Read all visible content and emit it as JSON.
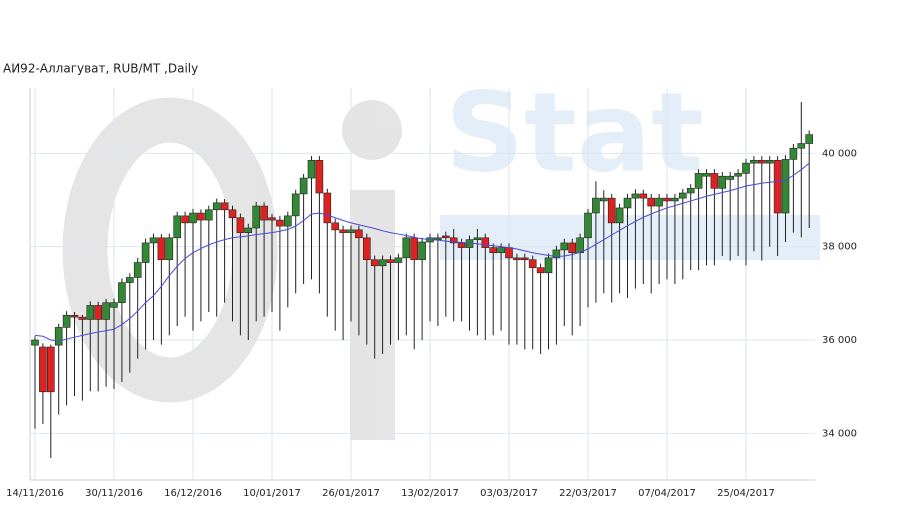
{
  "chart_data": {
    "type": "candlestick",
    "title": "АИ92-Аллагуват,  RUB/MT ,Daily",
    "watermark": "Stat",
    "categories": [
      "14/11/2016",
      null,
      null,
      null,
      null,
      null,
      null,
      null,
      null,
      null,
      "30/11/2016",
      null,
      null,
      null,
      null,
      null,
      null,
      null,
      null,
      null,
      "16/12/2016",
      null,
      null,
      null,
      null,
      null,
      null,
      null,
      null,
      null,
      "10/01/2017",
      null,
      null,
      null,
      null,
      null,
      null,
      null,
      null,
      null,
      "26/01/2017",
      null,
      null,
      null,
      null,
      null,
      null,
      null,
      null,
      null,
      "13/02/2017",
      null,
      null,
      null,
      null,
      null,
      null,
      null,
      null,
      null,
      "03/03/2017",
      null,
      null,
      null,
      null,
      null,
      null,
      null,
      null,
      null,
      "22/03/2017",
      null,
      null,
      null,
      null,
      null,
      null,
      null,
      null,
      null,
      "07/04/2017",
      null,
      null,
      null,
      null,
      null,
      null,
      null,
      null,
      null,
      "25/04/2017",
      null,
      null,
      null,
      null,
      null,
      null,
      null,
      null
    ],
    "open": [
      35890,
      35850,
      35850,
      35890,
      36270,
      36530,
      36490,
      36440,
      36740,
      36440,
      36700,
      36800,
      37230,
      37340,
      37660,
      38080,
      38190,
      37720,
      38190,
      38660,
      38510,
      38720,
      38570,
      38790,
      38940,
      38790,
      38620,
      38300,
      38400,
      38870,
      38620,
      38570,
      38440,
      38660,
      39130,
      39470,
      39850,
      39150,
      38510,
      38360,
      38300,
      38360,
      38190,
      37720,
      37590,
      37720,
      37660,
      37760,
      38190,
      37720,
      38100,
      38150,
      38230,
      38190,
      38080,
      37980,
      38150,
      38190,
      37980,
      37870,
      37980,
      37760,
      37760,
      37720,
      37550,
      37440,
      37760,
      37930,
      38080,
      37870,
      38190,
      38720,
      38980,
      39040,
      38510,
      38830,
      39040,
      39130,
      39040,
      38870,
      39040,
      38980,
      39040,
      39150,
      39250,
      39510,
      39570,
      39250,
      39440,
      39510,
      39570,
      39790,
      39850,
      39790,
      39850,
      38720,
      39870,
      40110,
      40210
    ],
    "high": [
      36080,
      35930,
      35900,
      36350,
      36620,
      36600,
      36540,
      36830,
      36820,
      36880,
      36890,
      37320,
      37430,
      37760,
      38170,
      38280,
      38270,
      38280,
      38750,
      38750,
      38810,
      38800,
      38880,
      39030,
      39020,
      38880,
      38710,
      38490,
      38960,
      38950,
      38700,
      38660,
      38750,
      39220,
      39560,
      39940,
      39940,
      39240,
      38600,
      38450,
      38450,
      38450,
      38280,
      37810,
      37810,
      37810,
      37850,
      38280,
      38280,
      38190,
      38280,
      38280,
      38320,
      38380,
      38170,
      38240,
      38380,
      38280,
      38070,
      38070,
      38070,
      37850,
      37850,
      37810,
      37640,
      37850,
      38020,
      38170,
      38170,
      38280,
      38810,
      39400,
      39210,
      39130,
      38920,
      39130,
      39230,
      39220,
      39130,
      39130,
      39130,
      39130,
      39240,
      39340,
      39660,
      39660,
      39660,
      39600,
      39600,
      39660,
      39880,
      39940,
      39940,
      39940,
      39940,
      39960,
      40200,
      41100,
      40490
    ],
    "low": [
      34100,
      34200,
      33470,
      34400,
      34600,
      34800,
      34700,
      34900,
      34900,
      35000,
      34950,
      35100,
      35300,
      35600,
      35800,
      36000,
      35900,
      36100,
      36300,
      36500,
      36200,
      36400,
      36600,
      36500,
      36800,
      36400,
      36100,
      36000,
      36400,
      36500,
      36600,
      36200,
      36700,
      37000,
      37200,
      37300,
      37000,
      36500,
      36200,
      36000,
      36400,
      36100,
      35900,
      35600,
      35700,
      35900,
      36000,
      36100,
      35800,
      36000,
      36400,
      36300,
      36500,
      36400,
      36400,
      36200,
      36100,
      36000,
      36100,
      36200,
      35900,
      35900,
      35800,
      35800,
      35700,
      35800,
      35900,
      36300,
      36100,
      36300,
      36700,
      36800,
      37000,
      36800,
      37000,
      36900,
      37100,
      37200,
      37000,
      37200,
      37300,
      37200,
      37300,
      37500,
      37500,
      37600,
      37600,
      37800,
      37700,
      37800,
      37600,
      37900,
      37700,
      38000,
      37800,
      38100,
      38300,
      38200,
      38400
    ],
    "close": [
      36000,
      34890,
      34890,
      36270,
      36530,
      36490,
      36440,
      36740,
      36440,
      36800,
      36800,
      37230,
      37340,
      37660,
      38080,
      38190,
      37720,
      38190,
      38660,
      38510,
      38720,
      38570,
      38790,
      38940,
      38790,
      38620,
      38300,
      38400,
      38870,
      38570,
      38570,
      38440,
      38660,
      39130,
      39470,
      39850,
      39150,
      38510,
      38360,
      38300,
      38360,
      38190,
      37720,
      37590,
      37720,
      37660,
      37760,
      38190,
      37720,
      38100,
      38190,
      38190,
      38190,
      38080,
      37980,
      38150,
      38190,
      37980,
      37870,
      37980,
      37760,
      37720,
      37720,
      37550,
      37440,
      37760,
      37930,
      38080,
      37870,
      38190,
      38720,
      39040,
      39040,
      38510,
      38830,
      39040,
      39130,
      39040,
      38870,
      39040,
      38980,
      39040,
      39150,
      39250,
      39570,
      39570,
      39250,
      39510,
      39510,
      39570,
      39790,
      39850,
      39790,
      39850,
      38720,
      39870,
      40110,
      40210,
      40400
    ],
    "up_color": "#338833",
    "down_color": "#dd2222",
    "moving_average": {
      "color": "#4a4ad8",
      "values": [
        36100,
        36080,
        36000,
        35980,
        36020,
        36060,
        36100,
        36140,
        36170,
        36200,
        36230,
        36330,
        36460,
        36620,
        36800,
        36950,
        37150,
        37380,
        37580,
        37750,
        37870,
        37960,
        38040,
        38100,
        38150,
        38190,
        38210,
        38230,
        38260,
        38280,
        38300,
        38330,
        38370,
        38440,
        38560,
        38700,
        38720,
        38680,
        38620,
        38560,
        38510,
        38470,
        38430,
        38390,
        38340,
        38300,
        38270,
        38240,
        38200,
        38170,
        38150,
        38140,
        38120,
        38100,
        38090,
        38080,
        38060,
        38040,
        38020,
        38000,
        37980,
        37950,
        37910,
        37870,
        37840,
        37810,
        37790,
        37800,
        37830,
        37880,
        37950,
        38050,
        38150,
        38250,
        38350,
        38450,
        38540,
        38630,
        38700,
        38770,
        38830,
        38880,
        38930,
        38980,
        39030,
        39080,
        39120,
        39160,
        39200,
        39250,
        39300,
        39330,
        39360,
        39380,
        39400,
        39420,
        39530,
        39650,
        39790
      ]
    },
    "ylim": [
      33000,
      41400
    ],
    "yticks": [
      {
        "value": 34000,
        "label": "34 000"
      },
      {
        "value": 36000,
        "label": "36 000"
      },
      {
        "value": 38000,
        "label": "38 000"
      },
      {
        "value": 40000,
        "label": "40 000"
      }
    ],
    "grid": true
  }
}
